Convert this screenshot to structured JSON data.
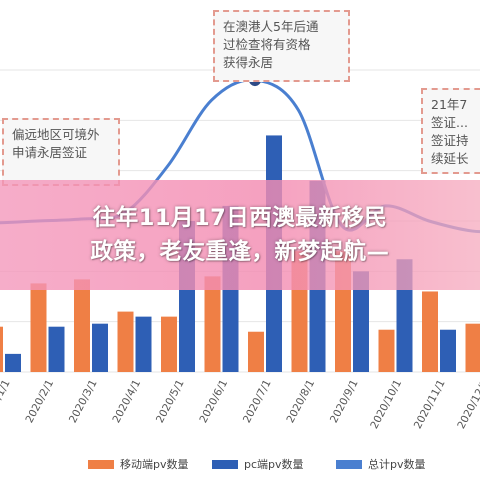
{
  "banner": {
    "line1": "往年11月17日西澳最新移民",
    "line2": "政策，老友重逢，新梦起航—"
  },
  "annotations": [
    "在澳港人5年后通\n过检查将有资格\n获得永居",
    "偏远地区可境外\n申请永居签证",
    "21年7\n签证...\n签证持\n续延长"
  ],
  "chart_data": {
    "type": "bar",
    "categories": [
      "2020/1/1",
      "2020/2/1",
      "2020/3/1",
      "2020/4/1",
      "2020/5/1",
      "2020/6/1",
      "2020/7/1",
      "2020/8/1",
      "2020/9/1",
      "2020/10/1",
      "2020/11/1",
      "2020/12/1"
    ],
    "series": [
      {
        "name": "移动端pv数量",
        "type": "bar",
        "color": "#ef7f45",
        "values": [
          45,
          88,
          92,
          60,
          55,
          95,
          40,
          120,
          120,
          42,
          80,
          48
        ]
      },
      {
        "name": "pc端pv数量",
        "type": "bar",
        "color": "#2e5fb5",
        "values": [
          18,
          45,
          48,
          55,
          150,
          165,
          235,
          190,
          100,
          112,
          42,
          60
        ]
      },
      {
        "name": "总计pv数量",
        "type": "line",
        "color": "#4a7fd0",
        "values": [
          148,
          150,
          152,
          158,
          205,
          270,
          290,
          260,
          145,
          165,
          150,
          140
        ]
      }
    ],
    "ylim": [
      0,
      300
    ],
    "grid": true,
    "legend_position": "bottom"
  }
}
